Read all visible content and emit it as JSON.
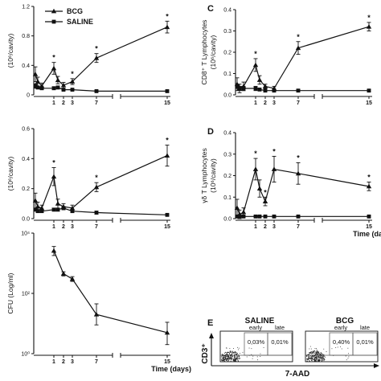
{
  "chart_data": [
    {
      "panel_letter": "",
      "type": "line",
      "ylabel": "(10⁶/cavity)",
      "ylim": [
        0,
        1.2
      ],
      "yticks": [
        "0",
        "0.4",
        "0.8",
        "1.2"
      ],
      "x": [
        0,
        0.25,
        0.5,
        1,
        1.5,
        2,
        3,
        7,
        15
      ],
      "xtick_labels": [
        "1",
        "2",
        "3",
        "7",
        "15"
      ],
      "legend": {
        "placement": "top-left",
        "entries": [
          "BCG",
          "SALINE"
        ]
      },
      "series": [
        {
          "name": "BCG",
          "marker": "triangle",
          "values": [
            0.28,
            0.18,
            0.12,
            0.36,
            0.2,
            0.13,
            0.18,
            0.5,
            0.92
          ],
          "errors": [
            0.1,
            0.06,
            0.04,
            0.08,
            0.05,
            0.04,
            0.04,
            0.06,
            0.08
          ],
          "significant": [
            "1",
            "3",
            "7",
            "15"
          ]
        },
        {
          "name": "SALINE",
          "marker": "square",
          "values": [
            0.12,
            0.1,
            0.09,
            0.09,
            0.1,
            0.07,
            0.07,
            0.05,
            0.05
          ],
          "errors": [
            0.03,
            0.02,
            0.02,
            0.02,
            0.02,
            0.01,
            0.01,
            0.01,
            0.01
          ]
        }
      ]
    },
    {
      "panel_letter": "C",
      "type": "line",
      "ylabel": "CD8⁺ T Lymphocytes",
      "ylabel2": "(10⁶/cavity)",
      "ylim": [
        0,
        0.4
      ],
      "yticks": [
        "0.0",
        "0.1",
        "0.2",
        "0.3",
        "0.4"
      ],
      "x": [
        0,
        0.25,
        0.5,
        1,
        1.5,
        2,
        3,
        7,
        15
      ],
      "xtick_labels": [
        "1",
        "2",
        "3",
        "7",
        "15"
      ],
      "series": [
        {
          "name": "BCG",
          "marker": "triangle",
          "values": [
            0.05,
            0.03,
            0.04,
            0.14,
            0.07,
            0.04,
            0.03,
            0.22,
            0.32
          ],
          "errors": [
            0.03,
            0.02,
            0.02,
            0.03,
            0.02,
            0.01,
            0.01,
            0.03,
            0.02
          ],
          "significant": [
            "1",
            "7",
            "15"
          ]
        },
        {
          "name": "SALINE",
          "marker": "square",
          "values": [
            0.04,
            0.03,
            0.03,
            0.03,
            0.025,
            0.02,
            0.02,
            0.02,
            0.02
          ],
          "errors": [
            0.01,
            0.01,
            0.01,
            0.01,
            0.005,
            0.005,
            0.005,
            0.005,
            0.005
          ]
        }
      ]
    },
    {
      "panel_letter": "",
      "type": "line",
      "ylabel": "(10⁶/cavity)",
      "ylim": [
        0,
        0.6
      ],
      "yticks": [
        "0.0",
        "0.2",
        "0.4",
        "0.6"
      ],
      "x": [
        0,
        0.25,
        0.5,
        1,
        1.5,
        2,
        3,
        7,
        15
      ],
      "xtick_labels": [
        "1",
        "2",
        "3",
        "7",
        "15"
      ],
      "series": [
        {
          "name": "BCG",
          "marker": "triangle",
          "values": [
            0.12,
            0.08,
            0.07,
            0.28,
            0.1,
            0.08,
            0.07,
            0.21,
            0.42
          ],
          "errors": [
            0.05,
            0.03,
            0.02,
            0.06,
            0.03,
            0.02,
            0.02,
            0.03,
            0.07
          ],
          "significant": [
            "1",
            "7",
            "15"
          ]
        },
        {
          "name": "SALINE",
          "marker": "square",
          "values": [
            0.06,
            0.05,
            0.05,
            0.06,
            0.06,
            0.07,
            0.05,
            0.04,
            0.025
          ],
          "errors": [
            0.01,
            0.01,
            0.01,
            0.01,
            0.01,
            0.01,
            0.01,
            0.01,
            0.005
          ]
        }
      ]
    },
    {
      "panel_letter": "D",
      "type": "line",
      "ylabel": "γδ T Lymphocytes",
      "ylabel2": "(10⁶/cavity)",
      "ylim": [
        0,
        0.4
      ],
      "yticks": [
        "0.0",
        "0.1",
        "0.2",
        "0.3",
        "0.4"
      ],
      "x": [
        0,
        0.25,
        0.5,
        1,
        1.5,
        2,
        3,
        7,
        15
      ],
      "xtick_labels": [
        "1",
        "2",
        "3",
        "7",
        "15"
      ],
      "xlabel": "Time (days)",
      "series": [
        {
          "name": "BCG",
          "marker": "triangle",
          "values": [
            0.05,
            0.02,
            0.03,
            0.23,
            0.14,
            0.08,
            0.23,
            0.21,
            0.15
          ],
          "errors": [
            0.04,
            0.02,
            0.02,
            0.05,
            0.04,
            0.02,
            0.06,
            0.05,
            0.02
          ],
          "significant": [
            "1",
            "2",
            "3",
            "7",
            "15"
          ]
        },
        {
          "name": "SALINE",
          "marker": "square",
          "values": [
            0.01,
            0.01,
            0.01,
            0.01,
            0.01,
            0.01,
            0.01,
            0.01,
            0.01
          ],
          "errors": [
            0.003,
            0.003,
            0.003,
            0.003,
            0.003,
            0.003,
            0.003,
            0.003,
            0.003
          ]
        }
      ]
    },
    {
      "panel_letter": "",
      "type": "line",
      "ylabel": "CFU (Log/ml)",
      "yscale": "log",
      "ylim": [
        1,
        10000
      ],
      "yticks": [
        "10⁰",
        "10²",
        "10⁴"
      ],
      "x": [
        1,
        2,
        3,
        7,
        15
      ],
      "xtick_labels": [
        "1",
        "2",
        "3",
        "7",
        "15"
      ],
      "xlabel": "Time (days)",
      "series": [
        {
          "name": "BCG",
          "marker": "triangle",
          "values": [
            2600,
            450,
            300,
            20,
            5
          ],
          "err_low": [
            1800,
            380,
            250,
            9,
            2
          ],
          "err_high": [
            3600,
            520,
            360,
            45,
            11
          ]
        }
      ]
    }
  ],
  "flow": {
    "letter": "E",
    "ylabel": "CD3⁺",
    "xlabel": "7-AAD",
    "plots": [
      {
        "title": "SALINE",
        "gate_labels": [
          "early",
          "late"
        ],
        "percents": [
          "0,03%",
          "0,01%"
        ]
      },
      {
        "title": "BCG",
        "gate_labels": [
          "early",
          "late"
        ],
        "percents": [
          "0,40%",
          "0,01%"
        ]
      }
    ]
  }
}
